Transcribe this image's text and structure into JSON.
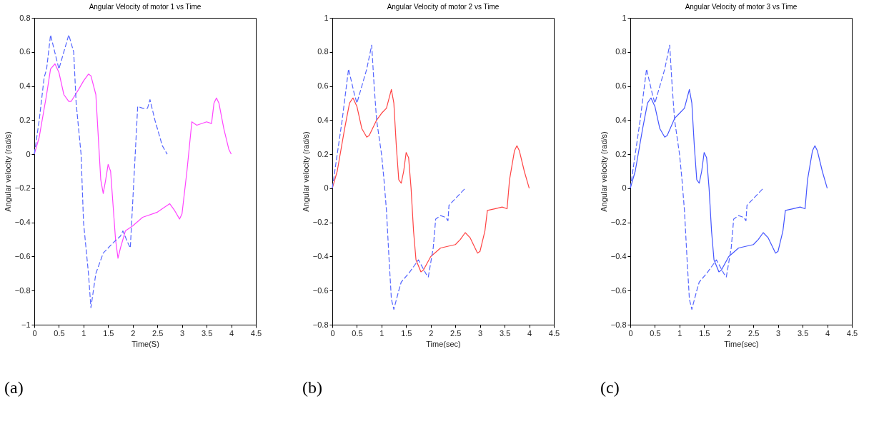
{
  "chart_data": [
    {
      "type": "line",
      "title": "Angular Velocity of motor 1 vs Time",
      "xlabel": "Time(S)",
      "ylabel": "Angular velocity (rad/s)",
      "annotations": [
        "(a)"
      ],
      "xlim": [
        0,
        4.5
      ],
      "xticks": [
        0,
        0.5,
        1,
        1.5,
        2,
        2.5,
        3,
        3.5,
        4,
        4.5
      ],
      "ylim": [
        -1,
        0.8
      ],
      "yticks": [
        -1,
        -0.8,
        -0.6,
        -0.4,
        -0.2,
        0,
        0.2,
        0.4,
        0.6,
        0.8
      ],
      "grid": false,
      "series": [
        {
          "color": "#ff44ff",
          "line_style": "solid",
          "x": [
            0,
            0.1,
            0.25,
            0.33,
            0.42,
            0.5,
            0.6,
            0.7,
            0.75,
            0.9,
            1.0,
            1.1,
            1.15,
            1.25,
            1.3,
            1.35,
            1.4,
            1.45,
            1.5,
            1.55,
            1.6,
            1.65,
            1.7,
            1.75,
            1.85,
            2.0,
            2.2,
            2.5,
            2.6,
            2.75,
            2.85,
            2.95,
            3.0,
            3.1,
            3.2,
            3.3,
            3.5,
            3.6,
            3.65,
            3.7,
            3.75,
            3.85,
            3.95,
            4.0
          ],
          "values": [
            0,
            0.1,
            0.35,
            0.5,
            0.53,
            0.48,
            0.35,
            0.31,
            0.31,
            0.38,
            0.43,
            0.47,
            0.46,
            0.35,
            0.1,
            -0.15,
            -0.23,
            -0.15,
            -0.06,
            -0.1,
            -0.3,
            -0.5,
            -0.61,
            -0.55,
            -0.45,
            -0.42,
            -0.37,
            -0.34,
            -0.32,
            -0.29,
            -0.33,
            -0.38,
            -0.35,
            -0.1,
            0.19,
            0.17,
            0.19,
            0.18,
            0.3,
            0.33,
            0.3,
            0.15,
            0.03,
            0
          ]
        },
        {
          "color": "#5566ff",
          "line_style": "dashed",
          "x": [
            0,
            0.1,
            0.2,
            0.25,
            0.33,
            0.5,
            0.6,
            0.7,
            0.8,
            0.85,
            0.95,
            1.0,
            1.1,
            1.15,
            1.25,
            1.4,
            1.6,
            1.75,
            1.8,
            1.9,
            1.95,
            2.05,
            2.1,
            2.2,
            2.3,
            2.35,
            2.45,
            2.6,
            2.7
          ],
          "values": [
            0,
            0.2,
            0.45,
            0.5,
            0.7,
            0.5,
            0.6,
            0.7,
            0.6,
            0.3,
            0,
            -0.4,
            -0.7,
            -0.9,
            -0.7,
            -0.58,
            -0.52,
            -0.48,
            -0.45,
            -0.52,
            -0.55,
            0,
            0.28,
            0.27,
            0.27,
            0.32,
            0.2,
            0.05,
            0
          ]
        }
      ]
    },
    {
      "type": "line",
      "title": "Angular Velocity of motor 2 vs Time",
      "xlabel": "Time(sec)",
      "ylabel": "Angular velocity (rad/s)",
      "annotations": [
        "(b)"
      ],
      "xlim": [
        0,
        4.5
      ],
      "xticks": [
        0,
        0.5,
        1,
        1.5,
        2,
        2.5,
        3,
        3.5,
        4,
        4.5
      ],
      "ylim": [
        -0.8,
        1
      ],
      "yticks": [
        -0.8,
        -0.6,
        -0.4,
        -0.2,
        0,
        0.2,
        0.4,
        0.6,
        0.8,
        1
      ],
      "grid": false,
      "series": [
        {
          "color": "#ff4444",
          "line_style": "solid",
          "x": [
            0,
            0.1,
            0.25,
            0.35,
            0.42,
            0.5,
            0.6,
            0.7,
            0.75,
            0.9,
            1.0,
            1.1,
            1.2,
            1.25,
            1.3,
            1.35,
            1.4,
            1.45,
            1.5,
            1.55,
            1.6,
            1.65,
            1.7,
            1.8,
            1.85,
            2.0,
            2.2,
            2.5,
            2.6,
            2.7,
            2.8,
            2.95,
            3.0,
            3.1,
            3.15,
            3.3,
            3.45,
            3.55,
            3.6,
            3.7,
            3.75,
            3.8,
            3.9,
            4.0
          ],
          "values": [
            0,
            0.1,
            0.35,
            0.5,
            0.53,
            0.48,
            0.35,
            0.3,
            0.31,
            0.4,
            0.44,
            0.47,
            0.58,
            0.5,
            0.25,
            0.05,
            0.03,
            0.1,
            0.21,
            0.18,
            0,
            -0.25,
            -0.42,
            -0.49,
            -0.48,
            -0.4,
            -0.35,
            -0.33,
            -0.3,
            -0.26,
            -0.29,
            -0.38,
            -0.37,
            -0.25,
            -0.13,
            -0.12,
            -0.11,
            -0.12,
            0.05,
            0.22,
            0.25,
            0.22,
            0.1,
            0
          ]
        },
        {
          "color": "#5566ff",
          "line_style": "dashed",
          "x": [
            0,
            0.1,
            0.2,
            0.33,
            0.45,
            0.5,
            0.6,
            0.7,
            0.8,
            0.85,
            0.9,
            1.0,
            1.05,
            1.1,
            1.15,
            1.2,
            1.25,
            1.35,
            1.4,
            1.55,
            1.7,
            1.75,
            1.9,
            1.95,
            2.05,
            2.1,
            2.2,
            2.3,
            2.35,
            2.37,
            2.5,
            2.7
          ],
          "values": [
            0,
            0.2,
            0.4,
            0.7,
            0.55,
            0.5,
            0.6,
            0.7,
            0.84,
            0.6,
            0.4,
            0.2,
            0.05,
            -0.13,
            -0.4,
            -0.65,
            -0.71,
            -0.6,
            -0.55,
            -0.5,
            -0.44,
            -0.42,
            -0.5,
            -0.52,
            -0.35,
            -0.18,
            -0.16,
            -0.17,
            -0.19,
            -0.1,
            -0.06,
            0
          ]
        }
      ]
    },
    {
      "type": "line",
      "title": "Angular Velocity of motor 3 vs Time",
      "xlabel": "Time(sec)",
      "ylabel": "Angular velocity (rad/s)",
      "annotations": [
        "(c)"
      ],
      "xlim": [
        0,
        4.5
      ],
      "xticks": [
        0,
        0.5,
        1,
        1.5,
        2,
        2.5,
        3,
        3.5,
        4,
        4.5
      ],
      "ylim": [
        -0.8,
        1
      ],
      "yticks": [
        -0.8,
        -0.6,
        -0.4,
        -0.2,
        0,
        0.2,
        0.4,
        0.6,
        0.8,
        1
      ],
      "grid": false,
      "series": [
        {
          "color": "#4455ff",
          "line_style": "solid",
          "x": [
            0,
            0.1,
            0.25,
            0.35,
            0.42,
            0.5,
            0.6,
            0.7,
            0.75,
            0.9,
            1.0,
            1.1,
            1.2,
            1.25,
            1.3,
            1.35,
            1.4,
            1.45,
            1.5,
            1.55,
            1.6,
            1.65,
            1.7,
            1.8,
            1.85,
            2.0,
            2.2,
            2.5,
            2.6,
            2.7,
            2.8,
            2.95,
            3.0,
            3.1,
            3.15,
            3.3,
            3.45,
            3.55,
            3.6,
            3.7,
            3.75,
            3.8,
            3.9,
            4.0
          ],
          "values": [
            0,
            0.1,
            0.35,
            0.5,
            0.53,
            0.48,
            0.35,
            0.3,
            0.31,
            0.41,
            0.44,
            0.47,
            0.58,
            0.5,
            0.25,
            0.05,
            0.03,
            0.1,
            0.21,
            0.18,
            0,
            -0.25,
            -0.42,
            -0.49,
            -0.48,
            -0.4,
            -0.35,
            -0.33,
            -0.3,
            -0.26,
            -0.29,
            -0.38,
            -0.37,
            -0.25,
            -0.13,
            -0.12,
            -0.11,
            -0.12,
            0.05,
            0.22,
            0.25,
            0.22,
            0.1,
            0
          ]
        },
        {
          "color": "#5566ff",
          "line_style": "dashed",
          "x": [
            0,
            0.1,
            0.2,
            0.33,
            0.45,
            0.5,
            0.6,
            0.7,
            0.8,
            0.85,
            0.9,
            1.0,
            1.05,
            1.1,
            1.15,
            1.2,
            1.25,
            1.35,
            1.4,
            1.55,
            1.7,
            1.75,
            1.9,
            1.95,
            2.05,
            2.1,
            2.2,
            2.3,
            2.35,
            2.37,
            2.5,
            2.7
          ],
          "values": [
            0,
            0.2,
            0.4,
            0.7,
            0.55,
            0.5,
            0.6,
            0.7,
            0.84,
            0.6,
            0.4,
            0.2,
            0.05,
            -0.13,
            -0.4,
            -0.65,
            -0.71,
            -0.6,
            -0.55,
            -0.5,
            -0.44,
            -0.42,
            -0.5,
            -0.52,
            -0.35,
            -0.18,
            -0.16,
            -0.17,
            -0.19,
            -0.1,
            -0.06,
            0
          ]
        }
      ]
    }
  ]
}
